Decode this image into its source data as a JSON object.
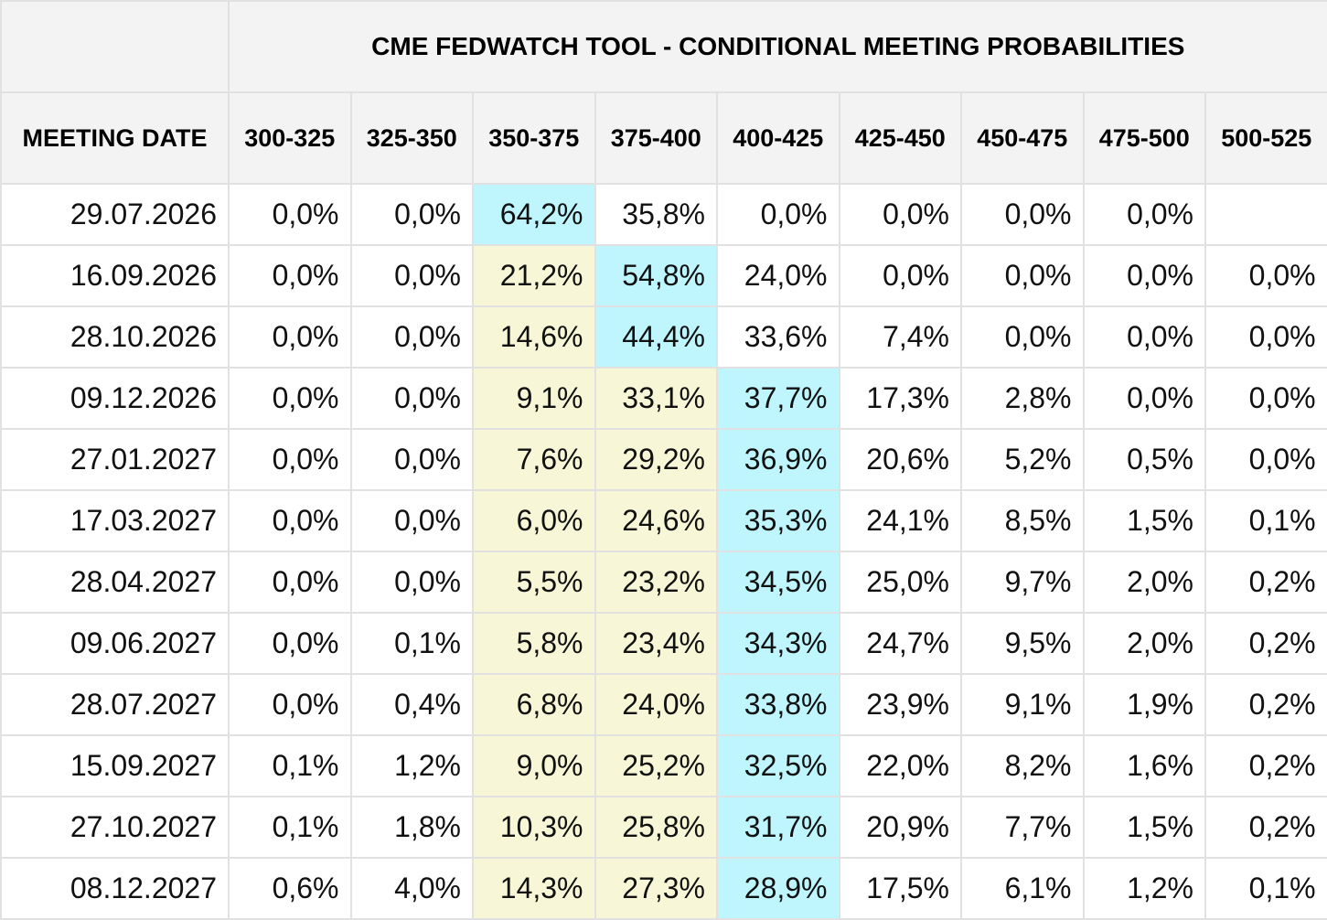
{
  "title": "CME FEDWATCH TOOL - CONDITIONAL MEETING PROBABILITIES",
  "date_header": "MEETING DATE",
  "colors": {
    "header_bg": "#f3f3f3",
    "yellow_highlight": "#f7f7d7",
    "cyan_highlight": "#bff5fd",
    "grid": "#e1e1e1"
  },
  "chart_data": {
    "type": "table",
    "columns": [
      "300-325",
      "325-350",
      "350-375",
      "375-400",
      "400-425",
      "425-450",
      "450-475",
      "475-500",
      "500-525"
    ],
    "rows": [
      {
        "date": "29.07.2026",
        "values": [
          "0,0%",
          "0,0%",
          "64,2%",
          "35,8%",
          "0,0%",
          "0,0%",
          "0,0%",
          "0,0%",
          ""
        ],
        "highlights": [
          "",
          "",
          "cyan",
          "",
          "",
          "",
          "",
          "",
          ""
        ]
      },
      {
        "date": "16.09.2026",
        "values": [
          "0,0%",
          "0,0%",
          "21,2%",
          "54,8%",
          "24,0%",
          "0,0%",
          "0,0%",
          "0,0%",
          "0,0%"
        ],
        "highlights": [
          "",
          "",
          "yellow",
          "cyan",
          "",
          "",
          "",
          "",
          ""
        ]
      },
      {
        "date": "28.10.2026",
        "values": [
          "0,0%",
          "0,0%",
          "14,6%",
          "44,4%",
          "33,6%",
          "7,4%",
          "0,0%",
          "0,0%",
          "0,0%"
        ],
        "highlights": [
          "",
          "",
          "yellow",
          "cyan",
          "",
          "",
          "",
          "",
          ""
        ]
      },
      {
        "date": "09.12.2026",
        "values": [
          "0,0%",
          "0,0%",
          "9,1%",
          "33,1%",
          "37,7%",
          "17,3%",
          "2,8%",
          "0,0%",
          "0,0%"
        ],
        "highlights": [
          "",
          "",
          "yellow",
          "yellow",
          "cyan",
          "",
          "",
          "",
          ""
        ]
      },
      {
        "date": "27.01.2027",
        "values": [
          "0,0%",
          "0,0%",
          "7,6%",
          "29,2%",
          "36,9%",
          "20,6%",
          "5,2%",
          "0,5%",
          "0,0%"
        ],
        "highlights": [
          "",
          "",
          "yellow",
          "yellow",
          "cyan",
          "",
          "",
          "",
          ""
        ]
      },
      {
        "date": "17.03.2027",
        "values": [
          "0,0%",
          "0,0%",
          "6,0%",
          "24,6%",
          "35,3%",
          "24,1%",
          "8,5%",
          "1,5%",
          "0,1%"
        ],
        "highlights": [
          "",
          "",
          "yellow",
          "yellow",
          "cyan",
          "",
          "",
          "",
          ""
        ]
      },
      {
        "date": "28.04.2027",
        "values": [
          "0,0%",
          "0,0%",
          "5,5%",
          "23,2%",
          "34,5%",
          "25,0%",
          "9,7%",
          "2,0%",
          "0,2%"
        ],
        "highlights": [
          "",
          "",
          "yellow",
          "yellow",
          "cyan",
          "",
          "",
          "",
          ""
        ]
      },
      {
        "date": "09.06.2027",
        "values": [
          "0,0%",
          "0,1%",
          "5,8%",
          "23,4%",
          "34,3%",
          "24,7%",
          "9,5%",
          "2,0%",
          "0,2%"
        ],
        "highlights": [
          "",
          "",
          "yellow",
          "yellow",
          "cyan",
          "",
          "",
          "",
          ""
        ]
      },
      {
        "date": "28.07.2027",
        "values": [
          "0,0%",
          "0,4%",
          "6,8%",
          "24,0%",
          "33,8%",
          "23,9%",
          "9,1%",
          "1,9%",
          "0,2%"
        ],
        "highlights": [
          "",
          "",
          "yellow",
          "yellow",
          "cyan",
          "",
          "",
          "",
          ""
        ]
      },
      {
        "date": "15.09.2027",
        "values": [
          "0,1%",
          "1,2%",
          "9,0%",
          "25,2%",
          "32,5%",
          "22,0%",
          "8,2%",
          "1,6%",
          "0,2%"
        ],
        "highlights": [
          "",
          "",
          "yellow",
          "yellow",
          "cyan",
          "",
          "",
          "",
          ""
        ]
      },
      {
        "date": "27.10.2027",
        "values": [
          "0,1%",
          "1,8%",
          "10,3%",
          "25,8%",
          "31,7%",
          "20,9%",
          "7,7%",
          "1,5%",
          "0,2%"
        ],
        "highlights": [
          "",
          "",
          "yellow",
          "yellow",
          "cyan",
          "",
          "",
          "",
          ""
        ]
      },
      {
        "date": "08.12.2027",
        "values": [
          "0,6%",
          "4,0%",
          "14,3%",
          "27,3%",
          "28,9%",
          "17,5%",
          "6,1%",
          "1,2%",
          "0,1%"
        ],
        "highlights": [
          "",
          "",
          "yellow",
          "yellow",
          "cyan",
          "",
          "",
          "",
          ""
        ]
      }
    ]
  }
}
